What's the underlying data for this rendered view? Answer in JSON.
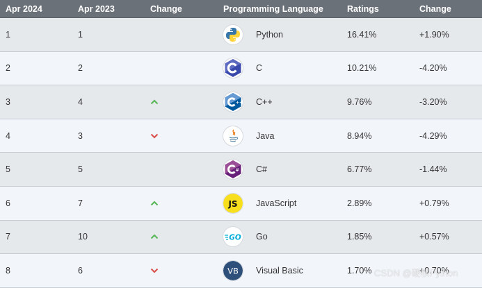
{
  "header": {
    "apr2024": "Apr 2024",
    "apr2023": "Apr 2023",
    "change": "Change",
    "language": "Programming Language",
    "ratings": "Ratings",
    "delta": "Change"
  },
  "rows": [
    {
      "rank2024": "1",
      "rank2023": "1",
      "trend": "none",
      "icon": "python-logo-icon",
      "language": "Python",
      "rating": "16.41%",
      "delta": "+1.90%"
    },
    {
      "rank2024": "2",
      "rank2023": "2",
      "trend": "none",
      "icon": "c-logo-icon",
      "language": "C",
      "rating": "10.21%",
      "delta": "-4.20%"
    },
    {
      "rank2024": "3",
      "rank2023": "4",
      "trend": "up",
      "icon": "cpp-logo-icon",
      "language": "C++",
      "rating": "9.76%",
      "delta": "-3.20%"
    },
    {
      "rank2024": "4",
      "rank2023": "3",
      "trend": "down",
      "icon": "java-logo-icon",
      "language": "Java",
      "rating": "8.94%",
      "delta": "-4.29%"
    },
    {
      "rank2024": "5",
      "rank2023": "5",
      "trend": "none",
      "icon": "csharp-logo-icon",
      "language": "C#",
      "rating": "6.77%",
      "delta": "-1.44%"
    },
    {
      "rank2024": "6",
      "rank2023": "7",
      "trend": "up",
      "icon": "javascript-logo-icon",
      "language": "JavaScript",
      "rating": "2.89%",
      "delta": "+0.79%"
    },
    {
      "rank2024": "7",
      "rank2023": "10",
      "trend": "up",
      "icon": "go-logo-icon",
      "language": "Go",
      "rating": "1.85%",
      "delta": "+0.57%"
    },
    {
      "rank2024": "8",
      "rank2023": "6",
      "trend": "down",
      "icon": "visual-basic-logo-icon",
      "language": "Visual Basic",
      "rating": "1.70%",
      "delta": "+0.70%"
    }
  ],
  "watermark": "CSDN @硬核Python",
  "colors": {
    "header_bg": "#6b7178",
    "row_odd": "#e6e9ec",
    "row_even": "#f2f6fb",
    "up": "#5cb85c",
    "down": "#d9534f"
  }
}
